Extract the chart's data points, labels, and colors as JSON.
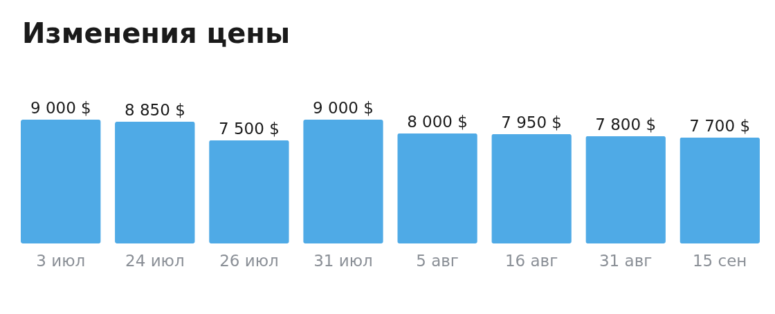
{
  "chart_data": {
    "type": "bar",
    "title": "Изменения цены",
    "categories": [
      "3 июл",
      "24 июл",
      "26 июл",
      "31 июл",
      "5 авг",
      "16 авг",
      "31 авг",
      "15 сен"
    ],
    "values": [
      9000,
      8850,
      7500,
      9000,
      8000,
      7950,
      7800,
      7700
    ],
    "value_labels": [
      "9 000 $",
      "8 850 $",
      "7 500 $",
      "9 000 $",
      "8 000 $",
      "7 950 $",
      "7 800 $",
      "7 700 $"
    ],
    "color": "#4faae6"
  }
}
